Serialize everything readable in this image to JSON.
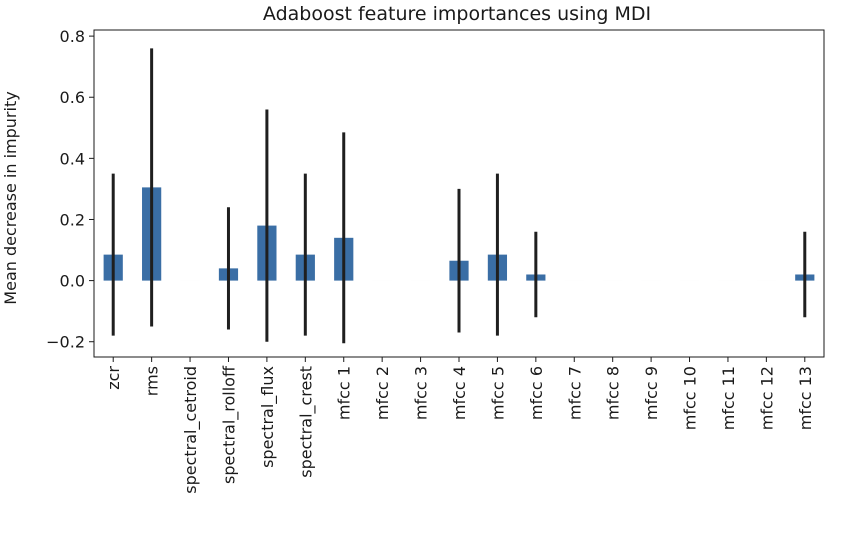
{
  "chart_data": {
    "type": "bar",
    "title": "Adaboost feature importances using MDI",
    "xlabel": "",
    "ylabel": "Mean decrease in impurity",
    "ylim": [
      -0.25,
      0.82
    ],
    "yticks": [
      -0.2,
      0.0,
      0.2,
      0.4,
      0.6,
      0.8
    ],
    "ytick_labels": [
      "−0.2",
      "0.0",
      "0.2",
      "0.4",
      "0.6",
      "0.8"
    ],
    "grid": false,
    "bar_color": "#3a6ea5",
    "error_color": "#1f1f1f",
    "categories": [
      "zcr",
      "rms",
      "spectral_cetroid",
      "spectral_rolloff",
      "spectral_flux",
      "spectral_crest",
      "mfcc 1",
      "mfcc 2",
      "mfcc 3",
      "mfcc 4",
      "mfcc 5",
      "mfcc 6",
      "mfcc 7",
      "mfcc 8",
      "mfcc 9",
      "mfcc 10",
      "mfcc 11",
      "mfcc 12",
      "mfcc 13"
    ],
    "values": [
      0.085,
      0.305,
      0.0,
      0.04,
      0.18,
      0.085,
      0.14,
      0.0,
      0.0,
      0.065,
      0.085,
      0.02,
      0.0,
      0.0,
      0.0,
      0.0,
      0.0,
      0.0,
      0.02
    ],
    "errors": [
      0.265,
      0.455,
      0.0,
      0.2,
      0.38,
      0.265,
      0.345,
      0.0,
      0.0,
      0.235,
      0.265,
      0.14,
      0.0,
      0.0,
      0.0,
      0.0,
      0.0,
      0.0,
      0.14
    ]
  }
}
